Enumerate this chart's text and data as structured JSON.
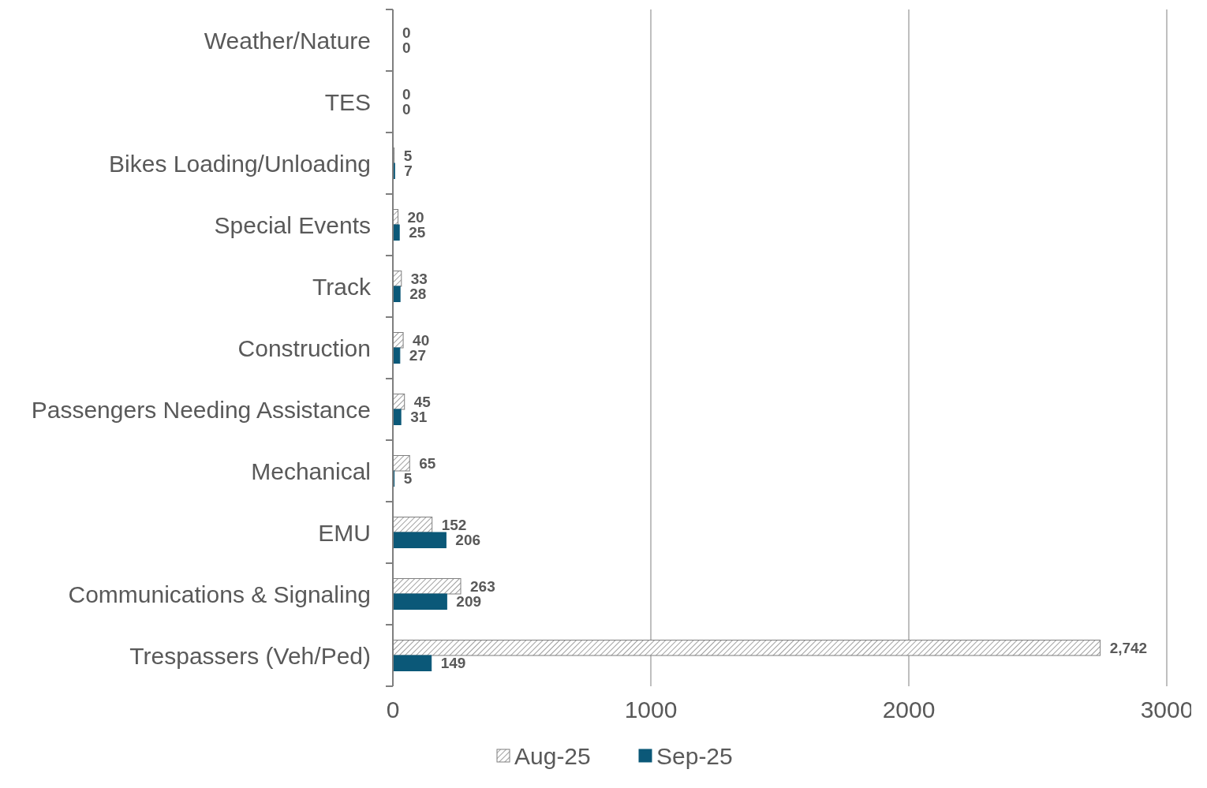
{
  "chart_data": {
    "type": "bar",
    "orientation": "horizontal",
    "categories": [
      "Weather/Nature",
      "TES",
      "Bikes Loading/Unloading",
      "Special Events",
      "Track",
      "Construction",
      "Passengers Needing Assistance",
      "Mechanical",
      "EMU",
      "Communications & Signaling",
      "Trespassers (Veh/Ped)"
    ],
    "series": [
      {
        "name": "Aug-25",
        "color": "#7f7f7f",
        "values": [
          0,
          0,
          5,
          20,
          33,
          40,
          45,
          65,
          152,
          263,
          2742
        ],
        "value_labels": [
          "0",
          "0",
          "5",
          "20",
          "33",
          "40",
          "45",
          "65",
          "152",
          "263",
          "2,742"
        ]
      },
      {
        "name": "Sep-25",
        "color": "#0b5878",
        "values": [
          0,
          0,
          7,
          25,
          28,
          27,
          31,
          5,
          206,
          209,
          149
        ],
        "value_labels": [
          "0",
          "0",
          "7",
          "25",
          "28",
          "27",
          "31",
          "5",
          "206",
          "209",
          "149"
        ]
      }
    ],
    "xlim": [
      0,
      3000
    ],
    "xticks": [
      0,
      1000,
      2000,
      3000
    ],
    "grid": "x",
    "legend": "bottom"
  }
}
